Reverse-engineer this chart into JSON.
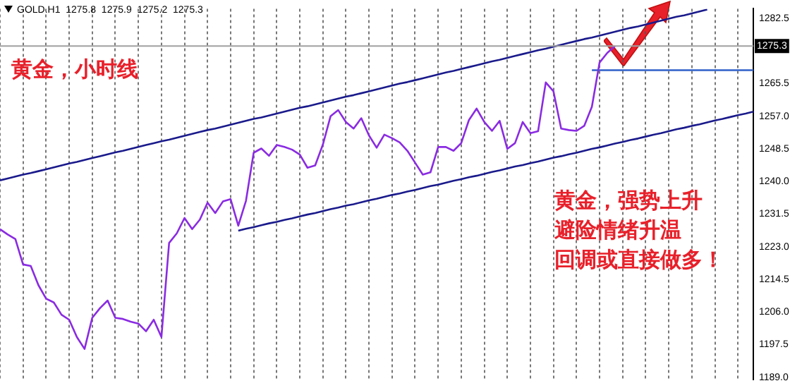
{
  "chart_data": {
    "type": "line",
    "title": "GOLD.H1  1275.8  1275.9  1275.2  1275.3",
    "annotations": [
      "黄金，小时线",
      "黄金，强势上升",
      "避险情绪升温",
      "回调或直接做多！"
    ],
    "categories": [
      null,
      null,
      null,
      null,
      null,
      null,
      null,
      null,
      null,
      null,
      null,
      null,
      null,
      null,
      null,
      null,
      null,
      null,
      null,
      null,
      null,
      null,
      null,
      null,
      null,
      null,
      null,
      null,
      null,
      null,
      null,
      null,
      null,
      null,
      null,
      null,
      null,
      null,
      null,
      null,
      null,
      null,
      null,
      null,
      null,
      null,
      null,
      null,
      null,
      null,
      null,
      null,
      null,
      null,
      null,
      null,
      null,
      null,
      null,
      null,
      null,
      null,
      null,
      null,
      null,
      null,
      null,
      null,
      null,
      null,
      null,
      null,
      null,
      null,
      null,
      null,
      null,
      null,
      null,
      null,
      null,
      null,
      null,
      null,
      null,
      null,
      null,
      null,
      null,
      null,
      null,
      null,
      null,
      null,
      null,
      null,
      null,
      null,
      null
    ],
    "series": [
      {
        "color": "#8a2be2",
        "values": [
          1227.6,
          1226.2,
          1225.0,
          1218.4,
          1218.0,
          1213.0,
          1209.5,
          1208.5,
          1205.3,
          1204.0,
          1199.5,
          1196.4,
          1204.5,
          1207.0,
          1209.0,
          1204.5,
          1204.2,
          1203.5,
          1203.0,
          1201.0,
          1204.0,
          1199.5,
          1224.0,
          1226.5,
          1230.5,
          1227.6,
          1230.1,
          1234.5,
          1231.8,
          1234.8,
          1235.4,
          1228.5,
          1235.0,
          1247.5,
          1248.6,
          1246.7,
          1249.5,
          1249.0,
          1248.3,
          1247.0,
          1243.6,
          1244.2,
          1249.6,
          1257.0,
          1258.6,
          1255.5,
          1253.8,
          1256.5,
          1252.0,
          1248.8,
          1252.2,
          1251.3,
          1250.2,
          1248.0,
          1244.9,
          1241.8,
          1242.4,
          1249.0,
          1249.0,
          1248.0,
          1250.0,
          1256.0,
          1259.0,
          1255.5,
          1253.2,
          1255.8,
          1248.5,
          1250.0,
          1255.5,
          1252.6,
          1253.1,
          1265.8,
          1263.5,
          1253.8,
          1253.4,
          1253.2,
          1254.5,
          1259.5,
          1271.0,
          1273.5,
          1275.3,
          null,
          null,
          null,
          null,
          null,
          null,
          null,
          null,
          null,
          null,
          null,
          null,
          null,
          null,
          null,
          null,
          null,
          null
        ]
      },
      {
        "color": "#1a1a8c",
        "values": [
          1240.3,
          1240.8,
          1241.3,
          1241.8,
          1242.2,
          1242.7,
          1243.2,
          1243.7,
          1244.2,
          1244.7,
          1245.1,
          1245.6,
          1246.1,
          1246.6,
          1247.1,
          1247.6,
          1248.0,
          1248.5,
          1249.0,
          1249.5,
          1250.0,
          1250.5,
          1250.9,
          1251.4,
          1251.9,
          1252.4,
          1252.9,
          1253.4,
          1253.8,
          1254.3,
          1254.8,
          1255.3,
          1255.8,
          1256.3,
          1256.7,
          1257.2,
          1257.7,
          1258.2,
          1258.7,
          1259.2,
          1259.6,
          1260.1,
          1260.6,
          1261.1,
          1261.6,
          1262.1,
          1262.5,
          1263.0,
          1263.5,
          1264.0,
          1264.5,
          1265.0,
          1265.5,
          1265.9,
          1266.4,
          1266.9,
          1267.4,
          1267.9,
          1268.4,
          1268.8,
          1269.3,
          1269.8,
          1270.3,
          1270.8,
          1271.3,
          1271.7,
          1272.2,
          1272.7,
          1273.2,
          1273.7,
          1274.2,
          1274.6,
          1275.1,
          1275.6,
          1276.1,
          1276.6,
          1277.1,
          1277.5,
          1278.0,
          1278.5,
          1279.0,
          1279.5,
          1280.0,
          1280.4,
          1280.9,
          null,
          1281.9,
          1282.4,
          1282.9,
          1283.3,
          1283.8,
          1284.3,
          1284.8,
          null,
          null,
          null,
          null,
          null,
          null
        ]
      },
      {
        "color": "#1a1a8c",
        "values": [
          null,
          null,
          null,
          null,
          null,
          null,
          null,
          null,
          null,
          null,
          null,
          null,
          null,
          null,
          null,
          null,
          null,
          null,
          null,
          null,
          null,
          null,
          null,
          null,
          null,
          null,
          null,
          null,
          null,
          null,
          null,
          1227.2,
          1227.7,
          1228.1,
          1228.6,
          1229.1,
          1229.5,
          1230.0,
          1230.4,
          1230.9,
          1231.4,
          1231.8,
          1232.3,
          1232.8,
          1233.2,
          1233.7,
          1234.1,
          1234.6,
          1235.1,
          1235.5,
          1236.0,
          1236.5,
          1236.9,
          1237.4,
          1237.8,
          1238.3,
          1238.8,
          1239.2,
          1239.7,
          1240.2,
          1240.6,
          1241.1,
          1241.5,
          1242.0,
          1242.5,
          1242.9,
          1243.4,
          1243.9,
          1244.3,
          1244.8,
          1245.2,
          1245.7,
          1246.2,
          1246.6,
          1247.1,
          1247.5,
          1248.0,
          1248.5,
          1248.9,
          1249.4,
          1249.9,
          1250.3,
          1250.8,
          1251.2,
          1251.7,
          1252.2,
          1252.6,
          1253.1,
          1253.6,
          1254.0,
          1254.5,
          1254.9,
          1255.4,
          1255.9,
          1256.3,
          1256.8,
          1257.3,
          1257.7,
          1258.2
        ]
      },
      {
        "color": "#2e5fc9",
        "values": [
          null,
          null,
          null,
          null,
          null,
          null,
          null,
          null,
          null,
          null,
          null,
          null,
          null,
          null,
          null,
          null,
          null,
          null,
          null,
          null,
          null,
          null,
          null,
          null,
          null,
          null,
          null,
          null,
          null,
          null,
          null,
          null,
          null,
          null,
          null,
          null,
          null,
          null,
          null,
          null,
          null,
          null,
          null,
          null,
          null,
          null,
          null,
          null,
          null,
          null,
          null,
          null,
          null,
          null,
          null,
          null,
          null,
          null,
          null,
          null,
          null,
          null,
          null,
          null,
          null,
          null,
          null,
          null,
          null,
          null,
          null,
          null,
          null,
          null,
          null,
          null,
          null,
          1269.0,
          1269.0,
          1269.0,
          1269.0,
          1269.0,
          1269.0,
          1269.0,
          1269.0,
          1269.0,
          1269.0,
          1269.0,
          1269.0,
          1269.0,
          1269.0,
          1269.0,
          1269.0,
          1269.0,
          1269.0,
          1269.0,
          1269.0,
          1269.0,
          1269.0
        ]
      }
    ],
    "ylim": [
      1188.5,
      1285.0
    ],
    "yticks": [
      {
        "value": 1189,
        "label": "1189.0"
      },
      {
        "value": 1197.5,
        "label": "1197.5"
      },
      {
        "value": 1206,
        "label": "1206.0"
      },
      {
        "value": 1214.5,
        "label": "1214.5"
      },
      {
        "value": 1223,
        "label": "1223.0"
      },
      {
        "value": 1231.5,
        "label": "1231.5"
      },
      {
        "value": 1240,
        "label": "1240.0"
      },
      {
        "value": 1248.5,
        "label": "1248.5"
      },
      {
        "value": 1257,
        "label": "1257.0"
      },
      {
        "value": 1265.5,
        "label": "1265.5"
      },
      {
        "value": 1282.5,
        "label": "1282.5"
      }
    ],
    "ref_lines": [
      {
        "axis": "y",
        "value": 1275.3,
        "label": "1275.3",
        "color": "#a0a0a0"
      }
    ],
    "grid": "x",
    "legend": false,
    "marker": "none",
    "line_style": "solid",
    "tick_labels": "y"
  }
}
